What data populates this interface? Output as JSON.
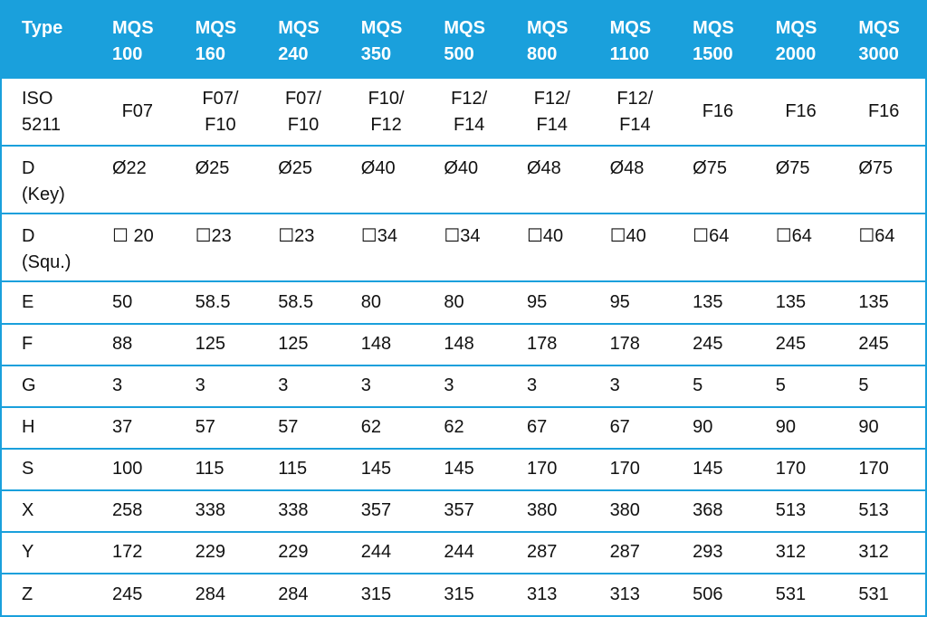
{
  "header": [
    "Type",
    "MQS\n100",
    "MQS\n160",
    "MQS\n240",
    "MQS\n350",
    "MQS\n500",
    "MQS\n800",
    "MQS\n1100",
    "MQS\n1500",
    "MQS\n2000",
    "MQS\n3000"
  ],
  "rows": [
    [
      "ISO\n5211",
      "F07",
      "F07/\nF10",
      "F07/\nF10",
      "F10/\nF12",
      "F12/\nF14",
      "F12/\nF14",
      "F12/\nF14",
      "F16",
      "F16",
      "F16"
    ],
    [
      "D\n(Key)",
      "Ø22",
      "Ø25",
      "Ø25",
      "Ø40",
      "Ø40",
      "Ø48",
      "Ø48",
      "Ø75",
      "Ø75",
      "Ø75"
    ],
    [
      "D\n(Squ.)",
      "☐ 20",
      "☐23",
      "☐23",
      "☐34",
      "☐34",
      "☐40",
      "☐40",
      "☐64",
      "☐64",
      "☐64"
    ],
    [
      "E",
      "50",
      "58.5",
      "58.5",
      "80",
      "80",
      "95",
      "95",
      "135",
      "135",
      "135"
    ],
    [
      "F",
      "88",
      "125",
      "125",
      "148",
      "148",
      "178",
      "178",
      "245",
      "245",
      "245"
    ],
    [
      "G",
      "3",
      "3",
      "3",
      "3",
      "3",
      "3",
      "3",
      "5",
      "5",
      "5"
    ],
    [
      "H",
      "37",
      "57",
      "57",
      "62",
      "62",
      "67",
      "67",
      "90",
      "90",
      "90"
    ],
    [
      "S",
      "100",
      "115",
      "115",
      "145",
      "145",
      "170",
      "170",
      "145",
      "170",
      "170"
    ],
    [
      "X",
      "258",
      "338",
      "338",
      "357",
      "357",
      "380",
      "380",
      "368",
      "513",
      "513"
    ],
    [
      "Y",
      "172",
      "229",
      "229",
      "244",
      "244",
      "287",
      "287",
      "293",
      "312",
      "312"
    ],
    [
      "Z",
      "245",
      "284",
      "284",
      "315",
      "315",
      "313",
      "313",
      "506",
      "531",
      "531"
    ]
  ]
}
